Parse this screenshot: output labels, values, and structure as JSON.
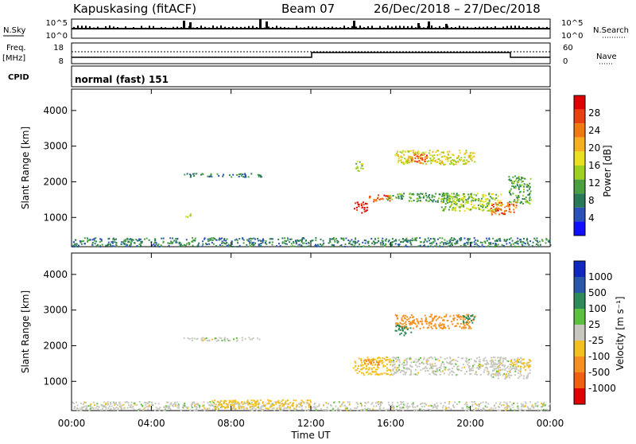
{
  "header": {
    "station": "Kapuskasing (fitACF)",
    "beam": "Beam 07",
    "date_range": "26/Dec/2018 – 27/Dec/2018"
  },
  "strips": {
    "nsky_label": "N.Sky",
    "nsky_top": "10^5",
    "nsky_bottom": "10^0",
    "nsearch_label": "N.Search",
    "nsearch_top": "10^5",
    "nsearch_bottom": "10^0",
    "freq_label": "Freq.",
    "freq_unit": "[MHz]",
    "freq_top": "18",
    "freq_bottom": "8",
    "nave_label": "Nave",
    "nave_top": "60",
    "nave_bottom": "0",
    "cpid_label": "CPID",
    "cpid_value": "normal (fast) 151"
  },
  "colorbars": {
    "power": {
      "title": "Power [dB]",
      "ticks": [
        "4",
        "8",
        "12",
        "16",
        "20",
        "24",
        "28"
      ],
      "colors": [
        "#1010ff",
        "#2a52b8",
        "#2a7a5a",
        "#4aa040",
        "#9ed020",
        "#e8e020",
        "#f4b020",
        "#f07a10",
        "#e84010",
        "#e00000"
      ]
    },
    "velocity": {
      "title": "Velocity [m s⁻¹]",
      "ticks": [
        "1000",
        "500",
        "100",
        "25",
        "-25",
        "-100",
        "-500",
        "-1000"
      ],
      "colors": [
        "#1028c0",
        "#2a58a8",
        "#2f8a5a",
        "#5cc040",
        "#c8c8c0",
        "#f4c020",
        "#f49020",
        "#f06010",
        "#e00000"
      ]
    }
  },
  "chart_data": [
    {
      "type": "heatmap",
      "name": "power",
      "ylabel": "Slant Range [km]",
      "ylim": [
        180,
        4600
      ],
      "yticks": [
        1000,
        2000,
        3000,
        4000
      ],
      "xlim": [
        0,
        24
      ],
      "regions": [
        {
          "t0": 0.0,
          "t1": 24.0,
          "r0": 200,
          "r1": 450,
          "value": 8
        },
        {
          "t0": 5.6,
          "t1": 9.5,
          "r0": 2150,
          "r1": 2250,
          "value": 8
        },
        {
          "t0": 5.6,
          "t1": 6.0,
          "r0": 1020,
          "r1": 1120,
          "value": 14
        },
        {
          "t0": 14.1,
          "t1": 14.8,
          "r0": 1150,
          "r1": 1450,
          "value": 28
        },
        {
          "t0": 14.8,
          "t1": 16.0,
          "r0": 1450,
          "r1": 1650,
          "value": 24
        },
        {
          "t0": 15.8,
          "t1": 20.2,
          "r0": 1450,
          "r1": 1700,
          "value": 10
        },
        {
          "t0": 16.2,
          "t1": 20.2,
          "r0": 2500,
          "r1": 2900,
          "value": 16
        },
        {
          "t0": 17.0,
          "t1": 17.8,
          "r0": 2550,
          "r1": 2800,
          "value": 24
        },
        {
          "t0": 18.5,
          "t1": 21.5,
          "r0": 1200,
          "r1": 1700,
          "value": 14
        },
        {
          "t0": 21.0,
          "t1": 22.3,
          "r0": 1100,
          "r1": 1450,
          "value": 24
        },
        {
          "t0": 14.2,
          "t1": 14.6,
          "r0": 2300,
          "r1": 2600,
          "value": 14
        },
        {
          "t0": 21.9,
          "t1": 23.0,
          "r0": 1400,
          "r1": 2200,
          "value": 10
        }
      ]
    },
    {
      "type": "heatmap",
      "name": "velocity",
      "ylabel": "Slant Range [km]",
      "ylim": [
        180,
        4600
      ],
      "yticks": [
        1000,
        2000,
        3000,
        4000
      ],
      "xlim": [
        0,
        24
      ],
      "xticks": [
        "00:00",
        "04:00",
        "08:00",
        "12:00",
        "16:00",
        "20:00",
        "00:00"
      ],
      "xlabel": "Time UT",
      "regions": [
        {
          "t0": 0.0,
          "t1": 24.0,
          "r0": 200,
          "r1": 450,
          "value": 0
        },
        {
          "t0": 7.0,
          "t1": 12.0,
          "r0": 250,
          "r1": 500,
          "value": -60
        },
        {
          "t0": 5.6,
          "t1": 9.5,
          "r0": 2150,
          "r1": 2250,
          "value": 0
        },
        {
          "t0": 14.1,
          "t1": 16.0,
          "r0": 1200,
          "r1": 1700,
          "value": -60
        },
        {
          "t0": 14.6,
          "t1": 15.4,
          "r0": 1450,
          "r1": 1650,
          "value": -300
        },
        {
          "t0": 16.0,
          "t1": 21.5,
          "r0": 1200,
          "r1": 1700,
          "value": 0
        },
        {
          "t0": 16.2,
          "t1": 20.2,
          "r0": 2500,
          "r1": 2900,
          "value": -300
        },
        {
          "t0": 19.5,
          "t1": 20.2,
          "r0": 2650,
          "r1": 2900,
          "value": 150
        },
        {
          "t0": 16.2,
          "t1": 17.0,
          "r0": 2300,
          "r1": 2600,
          "value": 150
        },
        {
          "t0": 21.0,
          "t1": 23.0,
          "r0": 1100,
          "r1": 1700,
          "value": 0
        },
        {
          "t0": 22.0,
          "t1": 23.0,
          "r0": 1400,
          "r1": 1650,
          "value": -60
        }
      ]
    }
  ]
}
